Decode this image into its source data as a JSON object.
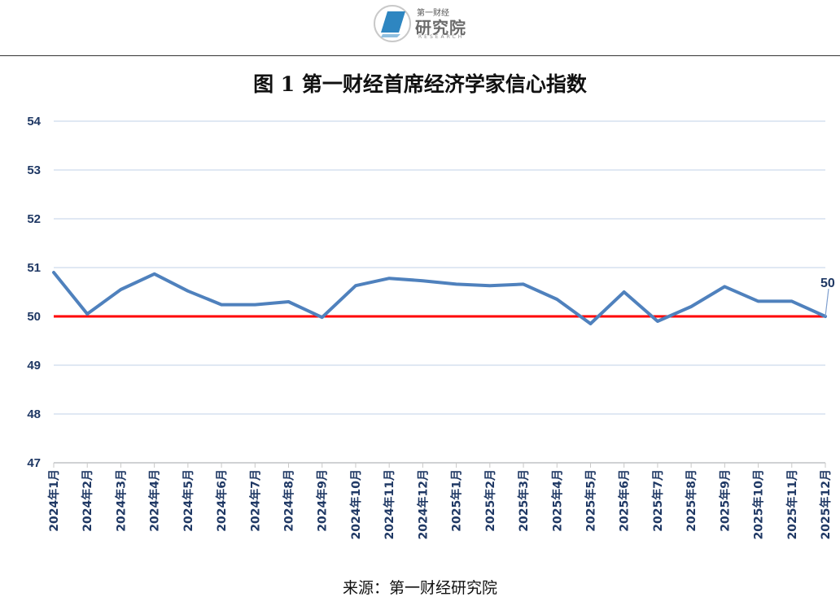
{
  "header": {
    "logo_top": "第一财经",
    "logo_main": "研究院",
    "logo_sub": "RESEARCH",
    "brand_color": "#2e86c1"
  },
  "chart_data": {
    "type": "line",
    "title": "图 1 第一财经首席经济学家信心指数",
    "source": "来源：第一财经研究院",
    "categories": [
      "2024年1月",
      "2024年2月",
      "2024年3月",
      "2024年4月",
      "2024年5月",
      "2024年6月",
      "2024年7月",
      "2024年8月",
      "2024年9月",
      "2024年10月",
      "2024年11月",
      "2024年12月",
      "2025年1月",
      "2025年2月",
      "2025年3月",
      "2025年4月",
      "2025年5月",
      "2025年6月",
      "2025年7月",
      "2025年8月",
      "2025年9月",
      "2025年10月",
      "2025年11月",
      "2025年12月"
    ],
    "series": [
      {
        "values": [
          50.9,
          50.05,
          50.55,
          50.87,
          50.52,
          50.24,
          50.24,
          50.3,
          49.98,
          50.63,
          50.78,
          50.73,
          50.66,
          50.63,
          50.66,
          50.35,
          49.85,
          50.5,
          49.9,
          50.2,
          50.61,
          50.31,
          50.31,
          50.0
        ],
        "color": "#4f81bd"
      }
    ],
    "reference_line": {
      "value": 50,
      "color": "#ff0000"
    },
    "data_labels": [
      {
        "index": 23,
        "text": "50"
      }
    ],
    "ylim": [
      47,
      54
    ],
    "yticks": [
      47,
      48,
      49,
      50,
      51,
      52,
      53,
      54
    ],
    "grid": true,
    "xlabel": "",
    "ylabel": ""
  }
}
